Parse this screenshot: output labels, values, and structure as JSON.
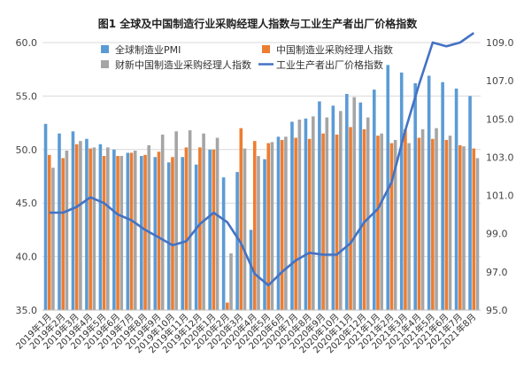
{
  "chart_data": {
    "type": "bar",
    "title": "图1 全球及中国制造行业采购经理人指数与工业生产者出厂价格指数",
    "categories": [
      "2019年1月",
      "2019年2月",
      "2019年3月",
      "2019年4月",
      "2019年5月",
      "2019年6月",
      "2019年7月",
      "2019年8月",
      "2019年9月",
      "2019年10月",
      "2019年11月",
      "2019年12月",
      "2020年1月",
      "2020年2月",
      "2020年3月",
      "2020年4月",
      "2020年5月",
      "2020年6月",
      "2020年7月",
      "2020年8月",
      "2020年9月",
      "2020年10月",
      "2020年11月",
      "2020年12月",
      "2021年1月",
      "2021年2月",
      "2021年3月",
      "2021年4月",
      "2021年5月",
      "2021年6月",
      "2021年7月",
      "2021年8月"
    ],
    "x_tick_labels": [
      "2019年1月",
      "2019年2月",
      "2019年3月",
      "2019年4月",
      "2019年5月",
      "2019年6月",
      "2019年7月",
      "2019年8月",
      "2019年9月",
      "2019年10月",
      "2019年11月",
      "2019年12月",
      "2020年1月",
      "2020年2月",
      "2020年3月",
      "2020年4月",
      "2020年5月",
      "2020年6月",
      "2020年7月",
      "2020年8月",
      "2020年9月",
      "2020年10月",
      "2020年11月",
      "2020年12月",
      "2021年1月",
      "2021年2月",
      "2021年3月",
      "2021年4月",
      "2021年5月",
      "2021年6月",
      "2021年7月",
      "2021年8月"
    ],
    "series": [
      {
        "name": "全球制造业PMI",
        "kind": "bar",
        "axis": "left",
        "color": "#5B9BD5",
        "values": [
          52.4,
          51.5,
          51.7,
          51.0,
          50.5,
          50.0,
          49.7,
          49.4,
          49.3,
          48.8,
          49.3,
          48.6,
          50.0,
          47.4,
          47.9,
          42.5,
          49.1,
          51.2,
          52.6,
          52.9,
          54.5,
          54.1,
          55.2,
          54.4,
          55.6,
          57.9,
          57.2,
          56.2,
          56.9,
          56.3,
          55.7,
          55.0
        ]
      },
      {
        "name": "中国制造业采购经理人指数",
        "kind": "bar",
        "axis": "left",
        "color": "#ED7D31",
        "values": [
          49.5,
          49.2,
          50.5,
          50.1,
          49.4,
          49.4,
          49.7,
          49.5,
          49.8,
          49.3,
          50.2,
          50.2,
          50.0,
          35.7,
          52.0,
          50.8,
          50.6,
          50.9,
          51.1,
          51.0,
          51.5,
          51.4,
          52.1,
          51.9,
          51.3,
          50.6,
          51.9,
          51.1,
          51.0,
          50.9,
          50.4,
          50.1
        ]
      },
      {
        "name": "财新中国制造业采购经理人指数",
        "kind": "bar",
        "axis": "left",
        "color": "#A5A5A5",
        "values": [
          48.3,
          49.9,
          50.8,
          50.2,
          50.2,
          49.4,
          49.9,
          50.4,
          51.4,
          51.7,
          51.8,
          51.5,
          51.1,
          40.3,
          50.1,
          49.4,
          50.7,
          51.2,
          52.8,
          53.1,
          53.0,
          53.6,
          54.9,
          53.0,
          51.5,
          50.9,
          50.6,
          51.9,
          52.0,
          51.3,
          50.3,
          49.2
        ]
      },
      {
        "name": "工业生产者出厂价格指数",
        "kind": "line",
        "axis": "right",
        "color": "#4472C4",
        "values": [
          100.1,
          100.1,
          100.4,
          100.9,
          100.6,
          100.0,
          99.7,
          99.2,
          98.8,
          98.4,
          98.6,
          99.5,
          100.1,
          99.6,
          98.5,
          96.9,
          96.3,
          97.0,
          97.6,
          98.0,
          97.9,
          97.9,
          98.5,
          99.6,
          100.3,
          101.7,
          104.4,
          106.8,
          109.0,
          108.8,
          109.0,
          109.5
        ]
      }
    ],
    "y_left": {
      "min": 35.0,
      "max": 60.0,
      "ticks": [
        "35.0",
        "40.0",
        "45.0",
        "50.0",
        "55.0",
        "60.0"
      ]
    },
    "y_right": {
      "min": 95.0,
      "max": 109.0,
      "ticks": [
        "95.0",
        "97.0",
        "99.0",
        "101.0",
        "103.0",
        "105.0",
        "107.0",
        "109.0"
      ]
    },
    "grid": true,
    "legend_position": "top"
  }
}
